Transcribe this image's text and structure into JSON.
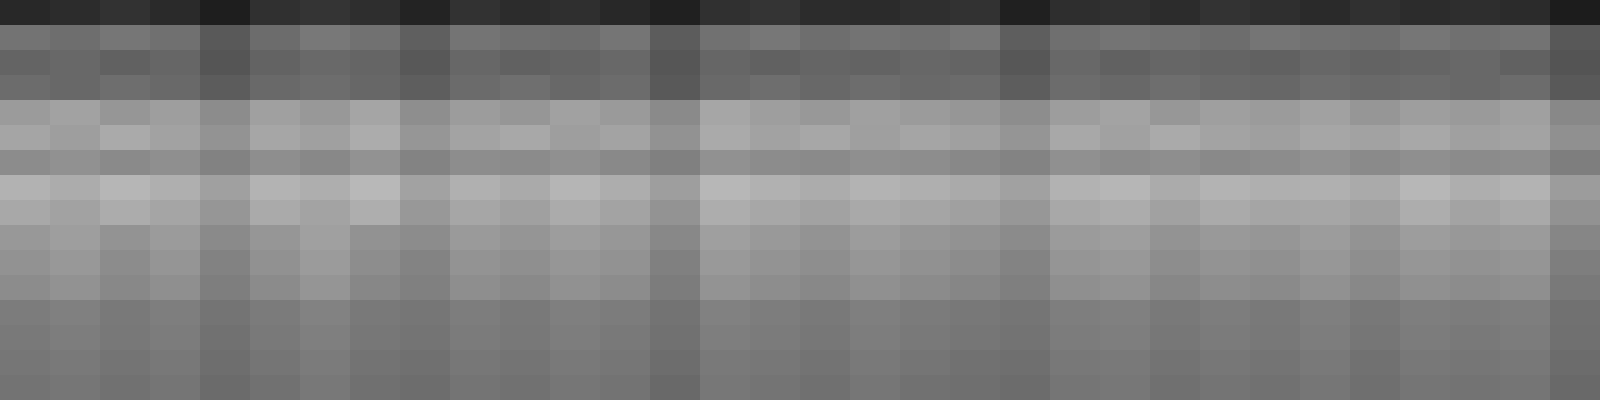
{
  "chart_data": {
    "type": "heatmap",
    "color": "gray",
    "tick_labels": false,
    "clim": [
      0,
      255
    ],
    "cells": [
      [
        40,
        45,
        50,
        42,
        30,
        48,
        52,
        46,
        35,
        50,
        44,
        47,
        41,
        32,
        49,
        53,
        45,
        43,
        47,
        50,
        33,
        46,
        48,
        44,
        51,
        47,
        42,
        49,
        45,
        46,
        43,
        28
      ],
      [
        115,
        110,
        118,
        112,
        90,
        108,
        120,
        114,
        95,
        116,
        111,
        109,
        117,
        92,
        113,
        119,
        110,
        115,
        112,
        118,
        94,
        111,
        116,
        113,
        109,
        117,
        114,
        110,
        118,
        112,
        115,
        88
      ],
      [
        100,
        104,
        98,
        102,
        85,
        99,
        105,
        101,
        88,
        103,
        97,
        100,
        104,
        86,
        102,
        98,
        101,
        99,
        103,
        100,
        87,
        104,
        98,
        102,
        100,
        97,
        103,
        99,
        101,
        104,
        98,
        84
      ],
      [
        108,
        104,
        110,
        106,
        92,
        105,
        109,
        103,
        94,
        107,
        111,
        104,
        108,
        90,
        106,
        110,
        104,
        109,
        105,
        107,
        93,
        108,
        104,
        110,
        106,
        103,
        109,
        105,
        107,
        104,
        108,
        90
      ],
      [
        155,
        162,
        150,
        158,
        140,
        160,
        152,
        165,
        142,
        156,
        150,
        161,
        154,
        138,
        166,
        158,
        152,
        160,
        155,
        150,
        141,
        157,
        163,
        151,
        159,
        155,
        161,
        150,
        158,
        154,
        160,
        136
      ],
      [
        165,
        158,
        170,
        162,
        148,
        166,
        160,
        172,
        150,
        163,
        168,
        158,
        164,
        146,
        170,
        162,
        167,
        159,
        165,
        160,
        149,
        168,
        161,
        170,
        163,
        159,
        166,
        162,
        168,
        160,
        164,
        144
      ],
      [
        140,
        145,
        138,
        143,
        130,
        142,
        136,
        146,
        132,
        141,
        139,
        144,
        137,
        128,
        145,
        140,
        138,
        143,
        141,
        136,
        131,
        144,
        139,
        142,
        137,
        140,
        145,
        138,
        143,
        139,
        141,
        126
      ],
      [
        178,
        172,
        182,
        175,
        160,
        180,
        174,
        184,
        162,
        176,
        170,
        181,
        173,
        158,
        183,
        177,
        172,
        179,
        175,
        170,
        161,
        178,
        182,
        171,
        180,
        175,
        176,
        170,
        183,
        174,
        179,
        156
      ],
      [
        168,
        162,
        172,
        165,
        150,
        170,
        163,
        174,
        152,
        166,
        160,
        171,
        164,
        148,
        173,
        167,
        162,
        169,
        165,
        160,
        151,
        168,
        172,
        161,
        170,
        165,
        166,
        160,
        173,
        164,
        169,
        146
      ],
      [
        152,
        158,
        148,
        155,
        138,
        150,
        160,
        146,
        140,
        154,
        149,
        157,
        151,
        136,
        159,
        153,
        148,
        156,
        150,
        146,
        139,
        155,
        158,
        147,
        153,
        150,
        156,
        148,
        157,
        152,
        155,
        134
      ],
      [
        146,
        152,
        140,
        149,
        130,
        145,
        155,
        141,
        132,
        148,
        143,
        150,
        146,
        128,
        153,
        147,
        142,
        150,
        145,
        140,
        131,
        149,
        152,
        141,
        147,
        144,
        151,
        142,
        150,
        146,
        149,
        126
      ],
      [
        140,
        146,
        136,
        143,
        126,
        139,
        149,
        135,
        128,
        142,
        137,
        145,
        140,
        124,
        147,
        141,
        136,
        144,
        139,
        134,
        127,
        143,
        146,
        135,
        141,
        138,
        145,
        136,
        144,
        140,
        143,
        122
      ],
      [
        124,
        128,
        122,
        126,
        116,
        123,
        130,
        121,
        118,
        125,
        122,
        127,
        124,
        115,
        129,
        125,
        121,
        127,
        123,
        120,
        117,
        126,
        128,
        121,
        125,
        122,
        127,
        120,
        126,
        124,
        126,
        114
      ],
      [
        122,
        125,
        120,
        124,
        114,
        121,
        127,
        119,
        116,
        123,
        120,
        125,
        122,
        113,
        126,
        123,
        119,
        125,
        121,
        118,
        115,
        124,
        126,
        119,
        123,
        120,
        125,
        118,
        124,
        122,
        124,
        112
      ],
      [
        118,
        121,
        116,
        120,
        110,
        117,
        123,
        115,
        112,
        119,
        116,
        121,
        118,
        109,
        122,
        119,
        115,
        121,
        117,
        114,
        111,
        120,
        122,
        115,
        119,
        116,
        121,
        114,
        120,
        118,
        120,
        108
      ],
      [
        115,
        118,
        113,
        117,
        107,
        114,
        120,
        112,
        109,
        116,
        113,
        118,
        115,
        106,
        119,
        116,
        112,
        118,
        114,
        111,
        108,
        117,
        119,
        112,
        116,
        113,
        118,
        111,
        117,
        115,
        117,
        105
      ]
    ]
  }
}
